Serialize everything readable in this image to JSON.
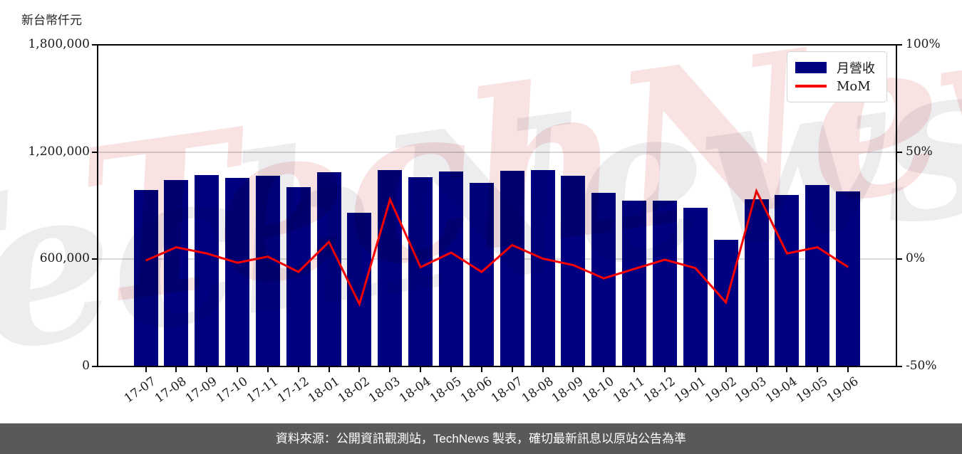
{
  "chart": {
    "y_axis_title": "新台幣仟元",
    "watermark": "TechNews",
    "footer": "資料來源：公開資訊觀測站，TechNews 製表，確切最新訊息以原站公告為準",
    "legend": [
      {
        "label": "月營收",
        "type": "bar"
      },
      {
        "label": "MoM",
        "type": "line"
      }
    ],
    "axes": {
      "left": {
        "ticks": [
          "0",
          "600,000",
          "1,200,000",
          "1,800,000"
        ]
      },
      "right": {
        "ticks": [
          "-50%",
          "0%",
          "50%",
          "100%"
        ]
      }
    },
    "colors": {
      "bar": "#000080",
      "line": "#ff0000",
      "grid": "#d9d9d9",
      "footer_bg": "#595959",
      "watermark_pink": "#f8e2e2",
      "watermark_gray": "#ededf0"
    }
  },
  "chart_data": {
    "type": "bar",
    "title": "",
    "xlabel": "",
    "ylabel_left": "新台幣仟元",
    "ylabel_right": "%",
    "legend_position": "top-right",
    "grid": "horizontal",
    "categories": [
      "17-07",
      "17-08",
      "17-09",
      "17-10",
      "17-11",
      "17-12",
      "18-01",
      "18-02",
      "18-03",
      "18-04",
      "18-05",
      "18-06",
      "18-07",
      "18-08",
      "18-09",
      "18-10",
      "18-11",
      "18-12",
      "19-01",
      "19-02",
      "19-03",
      "19-04",
      "19-05",
      "19-06"
    ],
    "series": [
      {
        "name": "月營收",
        "type": "bar",
        "axis": "left",
        "color": "#000080",
        "values": [
          989000,
          1044000,
          1072000,
          1055000,
          1068000,
          1005000,
          1086000,
          859000,
          1099000,
          1058000,
          1091000,
          1027000,
          1095000,
          1098000,
          1068000,
          973000,
          929000,
          927000,
          889000,
          710000,
          936000,
          961000,
          1015000,
          978000
        ]
      },
      {
        "name": "MoM",
        "type": "line",
        "axis": "right",
        "color": "#ff0000",
        "values": [
          -0.6,
          5.6,
          2.7,
          -1.6,
          1.2,
          -5.9,
          8.1,
          -20.9,
          27.9,
          -3.7,
          3.1,
          -5.9,
          6.6,
          0.3,
          -2.7,
          -8.9,
          -4.5,
          -0.2,
          -4.1,
          -20.1,
          31.8,
          2.7,
          5.6,
          -3.6
        ]
      }
    ],
    "left_ylim": [
      0,
      1800000
    ],
    "right_ylim": [
      -50,
      100
    ],
    "left_tick_values": [
      0,
      600000,
      1200000,
      1800000
    ],
    "right_tick_values": [
      -50,
      0,
      50,
      100
    ],
    "grid_values": [
      600000,
      1200000
    ]
  }
}
